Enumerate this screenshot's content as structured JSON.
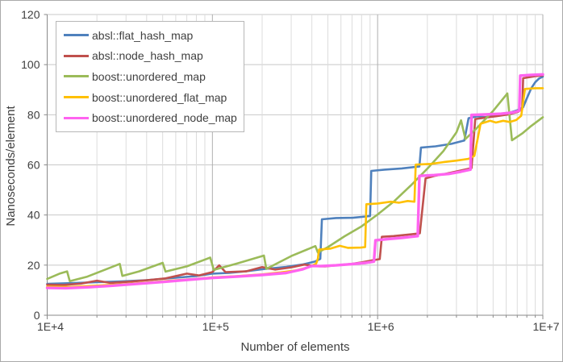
{
  "chart_data": {
    "type": "line",
    "title": "",
    "xlabel": "Number of elements",
    "ylabel": "Nanoseconds/element",
    "x_scale": "log10",
    "xlim": [
      10000,
      10000000
    ],
    "ylim": [
      0,
      120
    ],
    "y_tick_step": 20,
    "y_tick_labels": [
      "0",
      "20",
      "40",
      "60",
      "80",
      "100",
      "120"
    ],
    "x_tick_labels": [
      "1E+4",
      "1E+5",
      "1E+6",
      "1E+7"
    ],
    "x_tick_values": [
      10000,
      100000,
      1000000,
      10000000
    ],
    "grid": true,
    "legend_position": "top-left-inside",
    "axis_colors": {
      "axis_line": "#8a8a8a",
      "h_grid": "#c8c8c8",
      "v_grid_minor": "#dcdcdc",
      "v_grid_major": "#aeaeae",
      "text": "#3f3f3f"
    },
    "series": [
      {
        "name": "absl::flat_hash_map",
        "color": "#4f81bd",
        "width": 2.6,
        "points": [
          [
            10000,
            12.5
          ],
          [
            14000,
            12.8
          ],
          [
            20000,
            13.2
          ],
          [
            28000,
            13.5
          ],
          [
            40000,
            14.0
          ],
          [
            56000,
            14.8
          ],
          [
            79000,
            15.6
          ],
          [
            100000,
            16.6
          ],
          [
            126000,
            16.9
          ],
          [
            158000,
            17.5
          ],
          [
            210000,
            18.5
          ],
          [
            280000,
            19.3
          ],
          [
            355000,
            20.3
          ],
          [
            420000,
            21.5
          ],
          [
            450000,
            22.5
          ],
          [
            460000,
            38.3
          ],
          [
            560000,
            38.8
          ],
          [
            710000,
            38.9
          ],
          [
            850000,
            39.4
          ],
          [
            900000,
            39.6
          ],
          [
            915000,
            57.6
          ],
          [
            1100000,
            58.1
          ],
          [
            1400000,
            58.6
          ],
          [
            1790000,
            59.4
          ],
          [
            1830000,
            66.9
          ],
          [
            2240000,
            67.4
          ],
          [
            2800000,
            68.4
          ],
          [
            3350000,
            69.7
          ],
          [
            3550000,
            78.6
          ],
          [
            4000000,
            79.4
          ],
          [
            4500000,
            79.0
          ],
          [
            5000000,
            79.7
          ],
          [
            5600000,
            80.2
          ],
          [
            6300000,
            80.8
          ],
          [
            7100000,
            81.9
          ],
          [
            7600000,
            83.0
          ],
          [
            8000000,
            86.5
          ],
          [
            8500000,
            90.5
          ],
          [
            9000000,
            93.0
          ],
          [
            9500000,
            94.5
          ],
          [
            10000000,
            95.2
          ]
        ]
      },
      {
        "name": "absl::node_hash_map",
        "color": "#c0504d",
        "width": 2.6,
        "points": [
          [
            10000,
            12.2
          ],
          [
            12500,
            12.1
          ],
          [
            16000,
            12.6
          ],
          [
            20000,
            13.8
          ],
          [
            24000,
            12.9
          ],
          [
            32000,
            13.4
          ],
          [
            42000,
            14.1
          ],
          [
            52000,
            14.7
          ],
          [
            70000,
            16.6
          ],
          [
            83000,
            15.9
          ],
          [
            100000,
            17.2
          ],
          [
            110000,
            19.9
          ],
          [
            120000,
            17.2
          ],
          [
            160000,
            17.5
          ],
          [
            200000,
            19.2
          ],
          [
            240000,
            18.2
          ],
          [
            300000,
            19.1
          ],
          [
            360000,
            20.2
          ],
          [
            420000,
            19.6
          ],
          [
            480000,
            19.5
          ],
          [
            560000,
            19.9
          ],
          [
            680000,
            20.4
          ],
          [
            800000,
            21.1
          ],
          [
            930000,
            21.9
          ],
          [
            1030000,
            22.4
          ],
          [
            1060000,
            31.3
          ],
          [
            1250000,
            31.6
          ],
          [
            1500000,
            32.1
          ],
          [
            1800000,
            32.7
          ],
          [
            1950000,
            54.6
          ],
          [
            2200000,
            55.6
          ],
          [
            2600000,
            56.5
          ],
          [
            3100000,
            57.6
          ],
          [
            3700000,
            58.7
          ],
          [
            3900000,
            78.3
          ],
          [
            4500000,
            78.9
          ],
          [
            5200000,
            79.4
          ],
          [
            6300000,
            80.2
          ],
          [
            7100000,
            81.2
          ],
          [
            7500000,
            82.3
          ],
          [
            7600000,
            94.6
          ],
          [
            9000000,
            95.4
          ],
          [
            10000000,
            95.7
          ]
        ]
      },
      {
        "name": "boost::unordered_map",
        "color": "#9bbb59",
        "width": 2.6,
        "points": [
          [
            10000,
            14.5
          ],
          [
            12000,
            16.7
          ],
          [
            13200,
            17.5
          ],
          [
            13700,
            13.6
          ],
          [
            17500,
            15.4
          ],
          [
            25000,
            19.4
          ],
          [
            27500,
            20.5
          ],
          [
            28500,
            15.7
          ],
          [
            36000,
            17.5
          ],
          [
            50000,
            20.9
          ],
          [
            52000,
            17.4
          ],
          [
            70000,
            19.5
          ],
          [
            97000,
            23.0
          ],
          [
            102000,
            18.1
          ],
          [
            140000,
            20.6
          ],
          [
            205000,
            23.8
          ],
          [
            212000,
            18.5
          ],
          [
            300000,
            23.6
          ],
          [
            420000,
            27.6
          ],
          [
            435000,
            25.0
          ],
          [
            500000,
            27.2
          ],
          [
            630000,
            31.5
          ],
          [
            800000,
            35.5
          ],
          [
            1000000,
            40.2
          ],
          [
            1260000,
            45.5
          ],
          [
            1600000,
            52.0
          ],
          [
            2000000,
            58.5
          ],
          [
            2500000,
            65.5
          ],
          [
            3000000,
            73.0
          ],
          [
            3200000,
            77.8
          ],
          [
            3400000,
            70.3
          ],
          [
            4000000,
            74.8
          ],
          [
            5000000,
            81.5
          ],
          [
            6100000,
            88.5
          ],
          [
            6500000,
            69.8
          ],
          [
            7500000,
            72.5
          ],
          [
            8500000,
            75.5
          ],
          [
            10000000,
            79.0
          ]
        ]
      },
      {
        "name": "boost::unordered_flat_map",
        "color": "#ffc000",
        "width": 2.6,
        "points": [
          [
            10000,
            11.4
          ],
          [
            14000,
            11.3
          ],
          [
            20000,
            11.8
          ],
          [
            28000,
            12.3
          ],
          [
            40000,
            13.0
          ],
          [
            56000,
            13.8
          ],
          [
            79000,
            14.5
          ],
          [
            100000,
            15.1
          ],
          [
            140000,
            15.6
          ],
          [
            200000,
            16.3
          ],
          [
            260000,
            17.1
          ],
          [
            320000,
            17.9
          ],
          [
            380000,
            19.1
          ],
          [
            425000,
            20.6
          ],
          [
            435000,
            22.6
          ],
          [
            442000,
            26.2
          ],
          [
            520000,
            26.6
          ],
          [
            590000,
            27.7
          ],
          [
            660000,
            26.9
          ],
          [
            790000,
            27.0
          ],
          [
            840000,
            27.2
          ],
          [
            855000,
            44.3
          ],
          [
            1000000,
            44.6
          ],
          [
            1200000,
            45.3
          ],
          [
            1350000,
            44.9
          ],
          [
            1520000,
            45.6
          ],
          [
            1670000,
            45.3
          ],
          [
            1700000,
            60.1
          ],
          [
            2100000,
            60.4
          ],
          [
            2500000,
            61.1
          ],
          [
            3000000,
            61.7
          ],
          [
            3550000,
            62.4
          ],
          [
            3850000,
            63.6
          ],
          [
            4200000,
            76.4
          ],
          [
            4800000,
            77.6
          ],
          [
            5200000,
            76.9
          ],
          [
            5750000,
            77.6
          ],
          [
            6300000,
            77.1
          ],
          [
            6900000,
            77.9
          ],
          [
            7400000,
            79.6
          ],
          [
            7800000,
            90.3
          ],
          [
            9000000,
            90.6
          ],
          [
            10000000,
            90.6
          ]
        ]
      },
      {
        "name": "boost::unordered_node_map",
        "color": "#ff63f0",
        "width": 3.4,
        "points": [
          [
            10000,
            10.9
          ],
          [
            13000,
            10.8
          ],
          [
            18000,
            11.2
          ],
          [
            25000,
            11.8
          ],
          [
            35000,
            12.5
          ],
          [
            50000,
            13.3
          ],
          [
            70000,
            14.1
          ],
          [
            100000,
            14.9
          ],
          [
            140000,
            15.4
          ],
          [
            200000,
            16.1
          ],
          [
            280000,
            16.9
          ],
          [
            350000,
            18.3
          ],
          [
            400000,
            19.7
          ],
          [
            450000,
            19.6
          ],
          [
            560000,
            19.9
          ],
          [
            700000,
            20.4
          ],
          [
            850000,
            20.9
          ],
          [
            950000,
            21.4
          ],
          [
            970000,
            29.9
          ],
          [
            1150000,
            30.4
          ],
          [
            1400000,
            30.9
          ],
          [
            1750000,
            31.6
          ],
          [
            1790000,
            55.6
          ],
          [
            2200000,
            55.9
          ],
          [
            2700000,
            56.4
          ],
          [
            3200000,
            57.3
          ],
          [
            3650000,
            58.1
          ],
          [
            3700000,
            79.9
          ],
          [
            4500000,
            80.1
          ],
          [
            5600000,
            80.4
          ],
          [
            6600000,
            80.9
          ],
          [
            7200000,
            81.6
          ],
          [
            7300000,
            95.6
          ],
          [
            8500000,
            95.9
          ],
          [
            10000000,
            96.1
          ]
        ]
      }
    ]
  }
}
